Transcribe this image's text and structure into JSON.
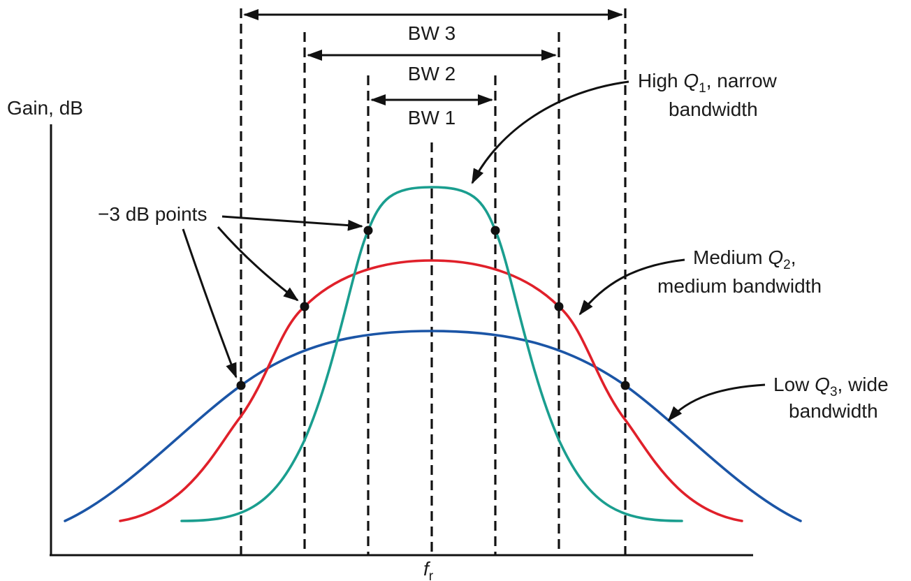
{
  "labels": {
    "y_axis": "Gain, dB",
    "x_center": "f",
    "x_center_sub": "r",
    "bw3": "BW 3",
    "bw2": "BW 2",
    "bw1": "BW 1",
    "db_points": "−3 dB points",
    "high_q_pre": "High ",
    "high_q_var": "Q",
    "high_q_sub": "1",
    "high_q_post": ", narrow",
    "high_q_line2": "bandwidth",
    "med_q_pre": "Medium ",
    "med_q_var": "Q",
    "med_q_sub": "2",
    "med_q_post": ",",
    "med_q_line2": "medium bandwidth",
    "low_q_pre": "Low ",
    "low_q_var": "Q",
    "low_q_sub": "3",
    "low_q_post": ", wide",
    "low_q_line2": "bandwidth"
  },
  "colors": {
    "high_q": "#1a9e8f",
    "medium_q": "#e0202a",
    "low_q": "#1b55a6",
    "ink": "#111111"
  }
}
